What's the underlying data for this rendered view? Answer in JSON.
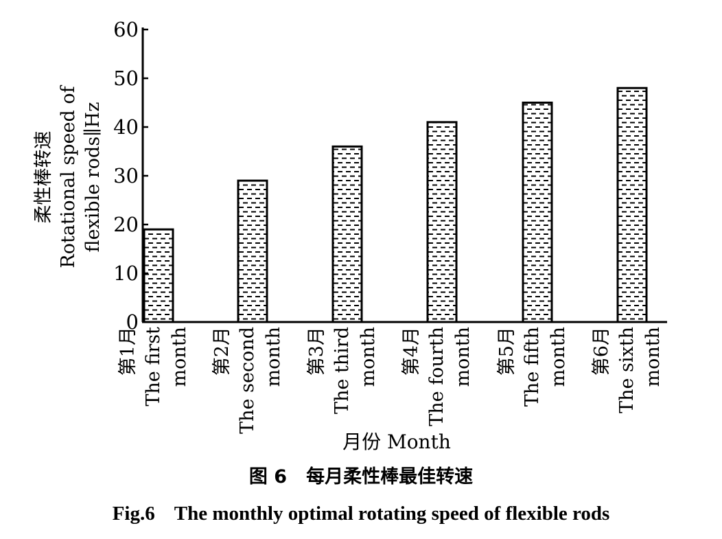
{
  "chart_data": {
    "type": "bar",
    "categories": [
      {
        "zh": "第1月",
        "en_1": "The first",
        "en_2": "month"
      },
      {
        "zh": "第2月",
        "en_1": "The second",
        "en_2": "month"
      },
      {
        "zh": "第3月",
        "en_1": "The third",
        "en_2": "month"
      },
      {
        "zh": "第4月",
        "en_1": "The fourth",
        "en_2": "month"
      },
      {
        "zh": "第5月",
        "en_1": "The fifth",
        "en_2": "month"
      },
      {
        "zh": "第6月",
        "en_1": "The sixth",
        "en_2": "month"
      }
    ],
    "values": [
      19,
      29,
      36,
      41,
      45,
      48
    ],
    "ylim": [
      0,
      60
    ],
    "yticks": [
      "0",
      "10",
      "20",
      "30",
      "40",
      "50",
      "60"
    ],
    "ylabel_zh": "柔性棒转速",
    "ylabel_en_1": "Rotational speed of",
    "ylabel_en_2": "flexible rods∥Hz",
    "xlabel": "月份 Month",
    "grid": false,
    "bar_pattern": "dashed-hatch"
  },
  "caption": {
    "zh_label": "图 6",
    "zh_text": "每月柔性棒最佳转速",
    "en_label": "Fig.6",
    "en_text": "The monthly optimal rotating speed of flexible rods"
  }
}
